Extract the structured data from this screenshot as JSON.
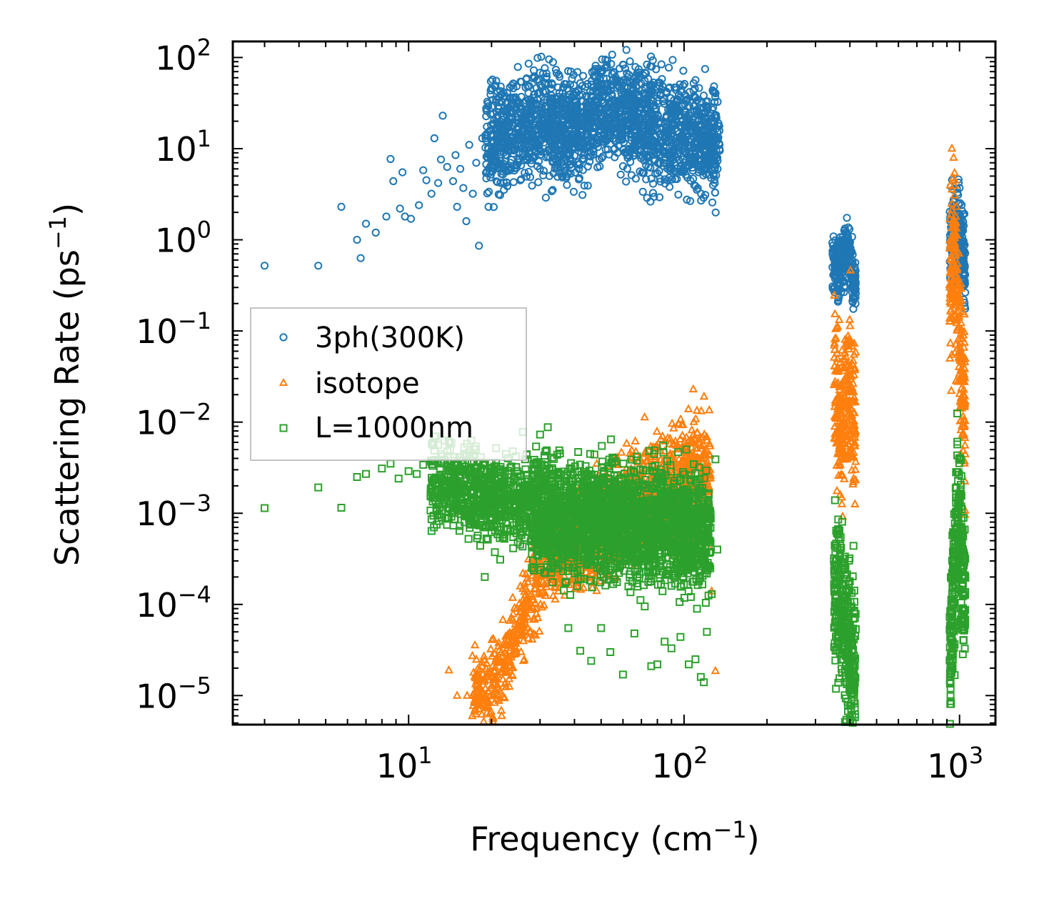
{
  "chart_data": {
    "type": "scatter",
    "xscale": "log",
    "yscale": "log",
    "xlim": [
      2.3,
      1350
    ],
    "ylim": [
      4.8e-06,
      150
    ],
    "xlabel": "Frequency (cm",
    "xlabel_exp": "−1",
    "xlabel_tail": ")",
    "ylabel": "Scattering Rate (ps",
    "ylabel_exp": "−1",
    "ylabel_tail": ")",
    "x_ticks": [
      {
        "value": 10,
        "base": "10",
        "exp": "1"
      },
      {
        "value": 100,
        "base": "10",
        "exp": "2"
      },
      {
        "value": 1000,
        "base": "10",
        "exp": "3"
      }
    ],
    "y_ticks": [
      {
        "value": 100,
        "base": "10",
        "exp": "2"
      },
      {
        "value": 10,
        "base": "10",
        "exp": "1"
      },
      {
        "value": 1,
        "base": "10",
        "exp": "0"
      },
      {
        "value": 0.1,
        "base": "10",
        "exp": "−1"
      },
      {
        "value": 0.01,
        "base": "10",
        "exp": "−2"
      },
      {
        "value": 0.001,
        "base": "10",
        "exp": "−3"
      },
      {
        "value": 0.0001,
        "base": "10",
        "exp": "−4"
      },
      {
        "value": 1e-05,
        "base": "10",
        "exp": "−5"
      }
    ],
    "legend_position": "center-left",
    "series": [
      {
        "name": "3ph(300K)",
        "marker": "circle",
        "color": "#1f77b4",
        "points": [
          [
            3.0,
            0.52
          ],
          [
            4.7,
            0.52
          ],
          [
            5.7,
            2.3
          ],
          [
            6.5,
            1.0
          ],
          [
            6.7,
            0.63
          ],
          [
            7.0,
            1.5
          ],
          [
            7.6,
            1.2
          ],
          [
            8.3,
            1.8
          ],
          [
            8.6,
            7.7
          ],
          [
            8.8,
            4.4
          ],
          [
            9.3,
            2.2
          ],
          [
            9.5,
            5.5
          ],
          [
            9.7,
            1.8
          ],
          [
            10.2,
            1.7
          ],
          [
            10.9,
            2.4
          ],
          [
            11.3,
            5.8
          ],
          [
            11.6,
            4.5
          ],
          [
            12.1,
            3.2
          ],
          [
            12.4,
            13.0
          ],
          [
            12.8,
            4.2
          ],
          [
            13.1,
            7.6
          ],
          [
            13.3,
            23.0
          ],
          [
            13.8,
            6.3
          ],
          [
            14.5,
            4.4
          ],
          [
            14.8,
            8.5
          ],
          [
            15.0,
            2.3
          ],
          [
            15.4,
            6.0
          ],
          [
            15.8,
            3.7
          ],
          [
            16.2,
            1.6
          ],
          [
            16.6,
            11.0
          ],
          [
            17.1,
            3.2
          ],
          [
            17.6,
            7.0
          ],
          [
            18.0,
            0.86
          ],
          [
            18.5,
            13.0
          ],
          [
            19.0,
            14.0
          ],
          [
            19.5,
            2.3
          ],
          [
            20.0,
            46.0
          ],
          [
            20.5,
            9.0
          ],
          [
            21.0,
            4.3
          ],
          [
            21.6,
            48.0
          ],
          [
            22.0,
            5.2
          ],
          [
            22.8,
            41.0
          ],
          [
            23.5,
            25.0
          ],
          [
            24.0,
            10.0
          ],
          [
            25.0,
            33.0
          ],
          [
            26.0,
            20.0
          ],
          [
            27.5,
            9.5
          ],
          [
            28.5,
            36.0
          ],
          [
            30.0,
            6.0
          ],
          [
            31.5,
            2.9
          ],
          [
            33.0,
            26.0
          ],
          [
            35.0,
            8.0
          ],
          [
            37.5,
            18.0
          ],
          [
            40.0,
            26.0
          ],
          [
            43.0,
            12.0
          ],
          [
            46.0,
            38.0
          ],
          [
            50.0,
            68.0
          ],
          [
            53.0,
            52.0
          ],
          [
            56.0,
            10.0
          ],
          [
            60.0,
            34.0
          ],
          [
            66.0,
            22.0
          ],
          [
            72.0,
            14.0
          ],
          [
            78.0,
            30.0
          ],
          [
            84.0,
            12.0
          ],
          [
            88.0,
            46.0
          ],
          [
            93.0,
            24.0
          ],
          [
            97.0,
            6.0
          ],
          [
            103.0,
            18.0
          ],
          [
            110.0,
            11.0
          ],
          [
            118.0,
            15.0
          ],
          [
            125.0,
            10.0
          ],
          [
            132.0,
            8.0
          ]
        ],
        "dense_bands": [
          {
            "x": [
              19.0,
              135.0
            ],
            "center": [
              12,
              14,
              18,
              20,
              16,
              17,
              26,
              24,
              20,
              17,
              14,
              12,
              10
            ],
            "spread": 0.28,
            "count": 2100
          },
          {
            "x": [
              345.0,
              420.0
            ],
            "center": [
              0.55,
              0.62,
              0.5,
              0.45,
              0.6,
              0.7,
              0.9,
              0.6,
              0.35,
              0.3
            ],
            "spread": 0.16,
            "count": 260
          },
          {
            "x": [
              920.0,
              1050.0
            ],
            "center": [
              1.0,
              0.9,
              1.2,
              1.4,
              1.2,
              0.9,
              0.7,
              0.5
            ],
            "spread": 0.25,
            "count": 240
          }
        ]
      },
      {
        "name": "isotope",
        "marker": "triangle",
        "color": "#ff7f0e",
        "points": [
          [
            14.0,
            1.9e-05
          ],
          [
            15.0,
            1e-05
          ],
          [
            16.3,
            1e-05
          ],
          [
            17.5,
            1e-05
          ],
          [
            19.0,
            1.2e-05
          ],
          [
            20.3,
            4.2e-05
          ],
          [
            22.0,
            6.8e-05
          ],
          [
            24.5,
            4e-05
          ],
          [
            26.0,
            0.00022
          ],
          [
            29.0,
            9e-05
          ],
          [
            32.0,
            0.00034
          ],
          [
            35.0,
            0.00014
          ],
          [
            38.0,
            0.00025
          ],
          [
            43.0,
            0.00057
          ],
          [
            49.0,
            0.0011
          ],
          [
            52.0,
            0.002
          ],
          [
            58.0,
            0.0026
          ],
          [
            68.0,
            0.0024
          ],
          [
            74.0,
            0.00085
          ],
          [
            85.0,
            0.0048
          ],
          [
            93.0,
            0.0036
          ],
          [
            108.0,
            0.023
          ],
          [
            118.0,
            0.0043
          ],
          [
            122.0,
            0.00043
          ],
          [
            130.0,
            1.87e-05
          ],
          [
            126.0,
            0.00014
          ]
        ],
        "dense_bands": [
          {
            "x": [
              17.0,
              40.0
            ],
            "center": [
              1e-05,
              1.1e-05,
              1.5e-05,
              2.5e-05,
              5e-05,
              0.0001,
              0.0002,
              0.0003,
              0.0004,
              0.0005
            ],
            "spread": 0.22,
            "count": 520
          },
          {
            "x": [
              40.0,
              125.0
            ],
            "center": [
              0.0005,
              0.0007,
              0.0009,
              0.0012,
              0.0015,
              0.0018,
              0.0022,
              0.0028,
              0.003
            ],
            "spread": 0.3,
            "count": 900
          },
          {
            "x": [
              350.0,
              420.0
            ],
            "center": [
              0.04,
              0.02,
              0.006,
              0.012,
              0.03,
              0.02,
              0.008
            ],
            "spread": 0.42,
            "count": 280
          },
          {
            "x": [
              920.0,
              1050.0
            ],
            "center": [
              0.3,
              0.6,
              1.2,
              0.4,
              0.1,
              0.04,
              0.02,
              0.01
            ],
            "spread": 0.45,
            "count": 260
          }
        ]
      },
      {
        "name": "L=1000nm",
        "marker": "square",
        "color": "#2ca02c",
        "points": [
          [
            3.0,
            0.00114
          ],
          [
            4.7,
            0.00192
          ],
          [
            5.7,
            0.00115
          ],
          [
            6.5,
            0.0025
          ],
          [
            7.0,
            0.0027
          ],
          [
            8.0,
            0.0031
          ],
          [
            8.6,
            0.0035
          ],
          [
            9.2,
            0.0024
          ],
          [
            10.0,
            0.0029
          ],
          [
            10.7,
            0.0027
          ],
          [
            11.3,
            0.0034
          ],
          [
            12.1,
            0.0019
          ],
          [
            12.8,
            0.0056
          ],
          [
            13.5,
            0.0063
          ],
          [
            14.3,
            0.0059
          ],
          [
            15.3,
            0.0041
          ],
          [
            16.3,
            0.0058
          ],
          [
            17.5,
            0.0054
          ],
          [
            18.2,
            0.00044
          ],
          [
            18.9,
            0.0002
          ],
          [
            20.0,
            0.0036
          ],
          [
            21.5,
            0.00031
          ],
          [
            22.9,
            0.00095
          ],
          [
            24.5,
            0.0042
          ],
          [
            26.0,
            0.0078
          ],
          [
            28.0,
            0.00045
          ],
          [
            30.0,
            0.0073
          ],
          [
            32.0,
            0.0088
          ],
          [
            35.0,
            0.00028
          ],
          [
            38.0,
            5.5e-05
          ],
          [
            42.0,
            3.1e-05
          ],
          [
            46.0,
            2.4e-05
          ],
          [
            50.0,
            5.5e-05
          ],
          [
            54.0,
            3e-05
          ],
          [
            60.0,
            1.7e-05
          ],
          [
            66.0,
            4.8e-05
          ],
          [
            72.0,
            9.5e-05
          ],
          [
            76.0,
            2.1e-05
          ],
          [
            80.0,
            2.2e-05
          ],
          [
            85.0,
            3.9e-05
          ],
          [
            90.0,
            3.3e-05
          ],
          [
            97.0,
            4.4e-05
          ],
          [
            104.0,
            2.2e-05
          ],
          [
            110.0,
            2.5e-05
          ],
          [
            115.0,
            1.6e-05
          ],
          [
            118.0,
            1.4e-05
          ],
          [
            121.0,
            5e-05
          ],
          [
            126.0,
            0.00013
          ],
          [
            132.0,
            0.0004
          ],
          [
            130.0,
            0.0039
          ]
        ],
        "dense_bands": [
          {
            "x": [
              12.0,
              28.0
            ],
            "center": [
              0.0022,
              0.002,
              0.0019,
              0.0017,
              0.0015,
              0.0014,
              0.0013,
              0.0012
            ],
            "spread": 0.22,
            "count": 700
          },
          {
            "x": [
              28.0,
              125.0
            ],
            "center": [
              0.0011,
              0.0009,
              0.0008,
              0.0009,
              0.0008,
              0.0007,
              0.0008,
              0.0007,
              0.0006
            ],
            "spread": 0.3,
            "count": 2300
          },
          {
            "x": [
              350.0,
              420.0
            ],
            "center": [
              8e-05,
              0.00015,
              0.0001,
              6e-05,
              4e-05,
              2e-05,
              3e-05
            ],
            "spread": 0.45,
            "count": 320
          },
          {
            "x": [
              920.0,
              1050.0
            ],
            "center": [
              2e-05,
              5e-05,
              0.0002,
              0.0008,
              0.001,
              0.0005,
              0.0002,
              0.0001
            ],
            "spread": 0.42,
            "count": 300
          }
        ]
      }
    ]
  }
}
